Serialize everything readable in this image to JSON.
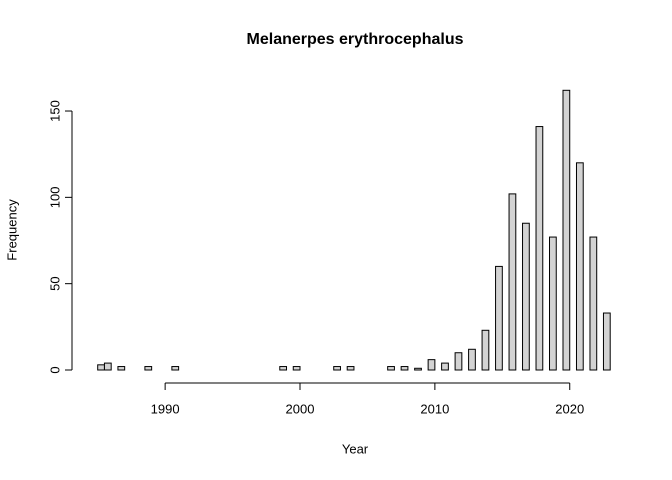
{
  "chart_data": {
    "type": "histogram",
    "title": "Melanerpes erythrocephalus",
    "xlabel": "Year",
    "ylabel": "Frequency",
    "bins": [
      1985,
      1985.5,
      1986,
      1986.5,
      1987,
      1987.5,
      1988,
      1988.5,
      1989,
      1989.5,
      1990,
      1990.5,
      1991,
      1991.5,
      1992,
      1992.5,
      1993,
      1993.5,
      1994,
      1994.5,
      1995,
      1995.5,
      1996,
      1996.5,
      1997,
      1997.5,
      1998,
      1998.5,
      1999,
      1999.5,
      2000,
      2000.5,
      2001,
      2001.5,
      2002,
      2002.5,
      2003,
      2003.5,
      2004,
      2004.5,
      2005,
      2005.5,
      2006,
      2006.5,
      2007,
      2007.5,
      2008,
      2008.5,
      2009,
      2009.5,
      2010,
      2010.5,
      2011,
      2011.5,
      2012,
      2012.5,
      2013,
      2013.5,
      2014,
      2014.5,
      2015,
      2015.5,
      2016,
      2016.5,
      2017,
      2017.5,
      2018,
      2018.5,
      2019,
      2019.5,
      2020,
      2020.5,
      2021,
      2021.5,
      2022,
      2022.5,
      2023
    ],
    "values": [
      3,
      4,
      0,
      2,
      0,
      0,
      0,
      2,
      0,
      0,
      0,
      2,
      0,
      0,
      0,
      0,
      0,
      0,
      0,
      0,
      0,
      0,
      0,
      0,
      0,
      0,
      0,
      2,
      0,
      2,
      0,
      0,
      0,
      0,
      0,
      2,
      0,
      2,
      0,
      0,
      0,
      0,
      0,
      2,
      0,
      2,
      0,
      1,
      0,
      6,
      0,
      4,
      0,
      10,
      0,
      12,
      0,
      23,
      0,
      60,
      0,
      102,
      0,
      85,
      0,
      141,
      0,
      77,
      0,
      162,
      0,
      120,
      0,
      77,
      0,
      33
    ],
    "color": "#d3d3d3",
    "xlim": [
      1985,
      2023
    ],
    "xticks": [
      1990,
      2000,
      2010,
      2020
    ],
    "ylim": [
      0,
      162
    ],
    "yticks": [
      0,
      50,
      100,
      150
    ]
  }
}
